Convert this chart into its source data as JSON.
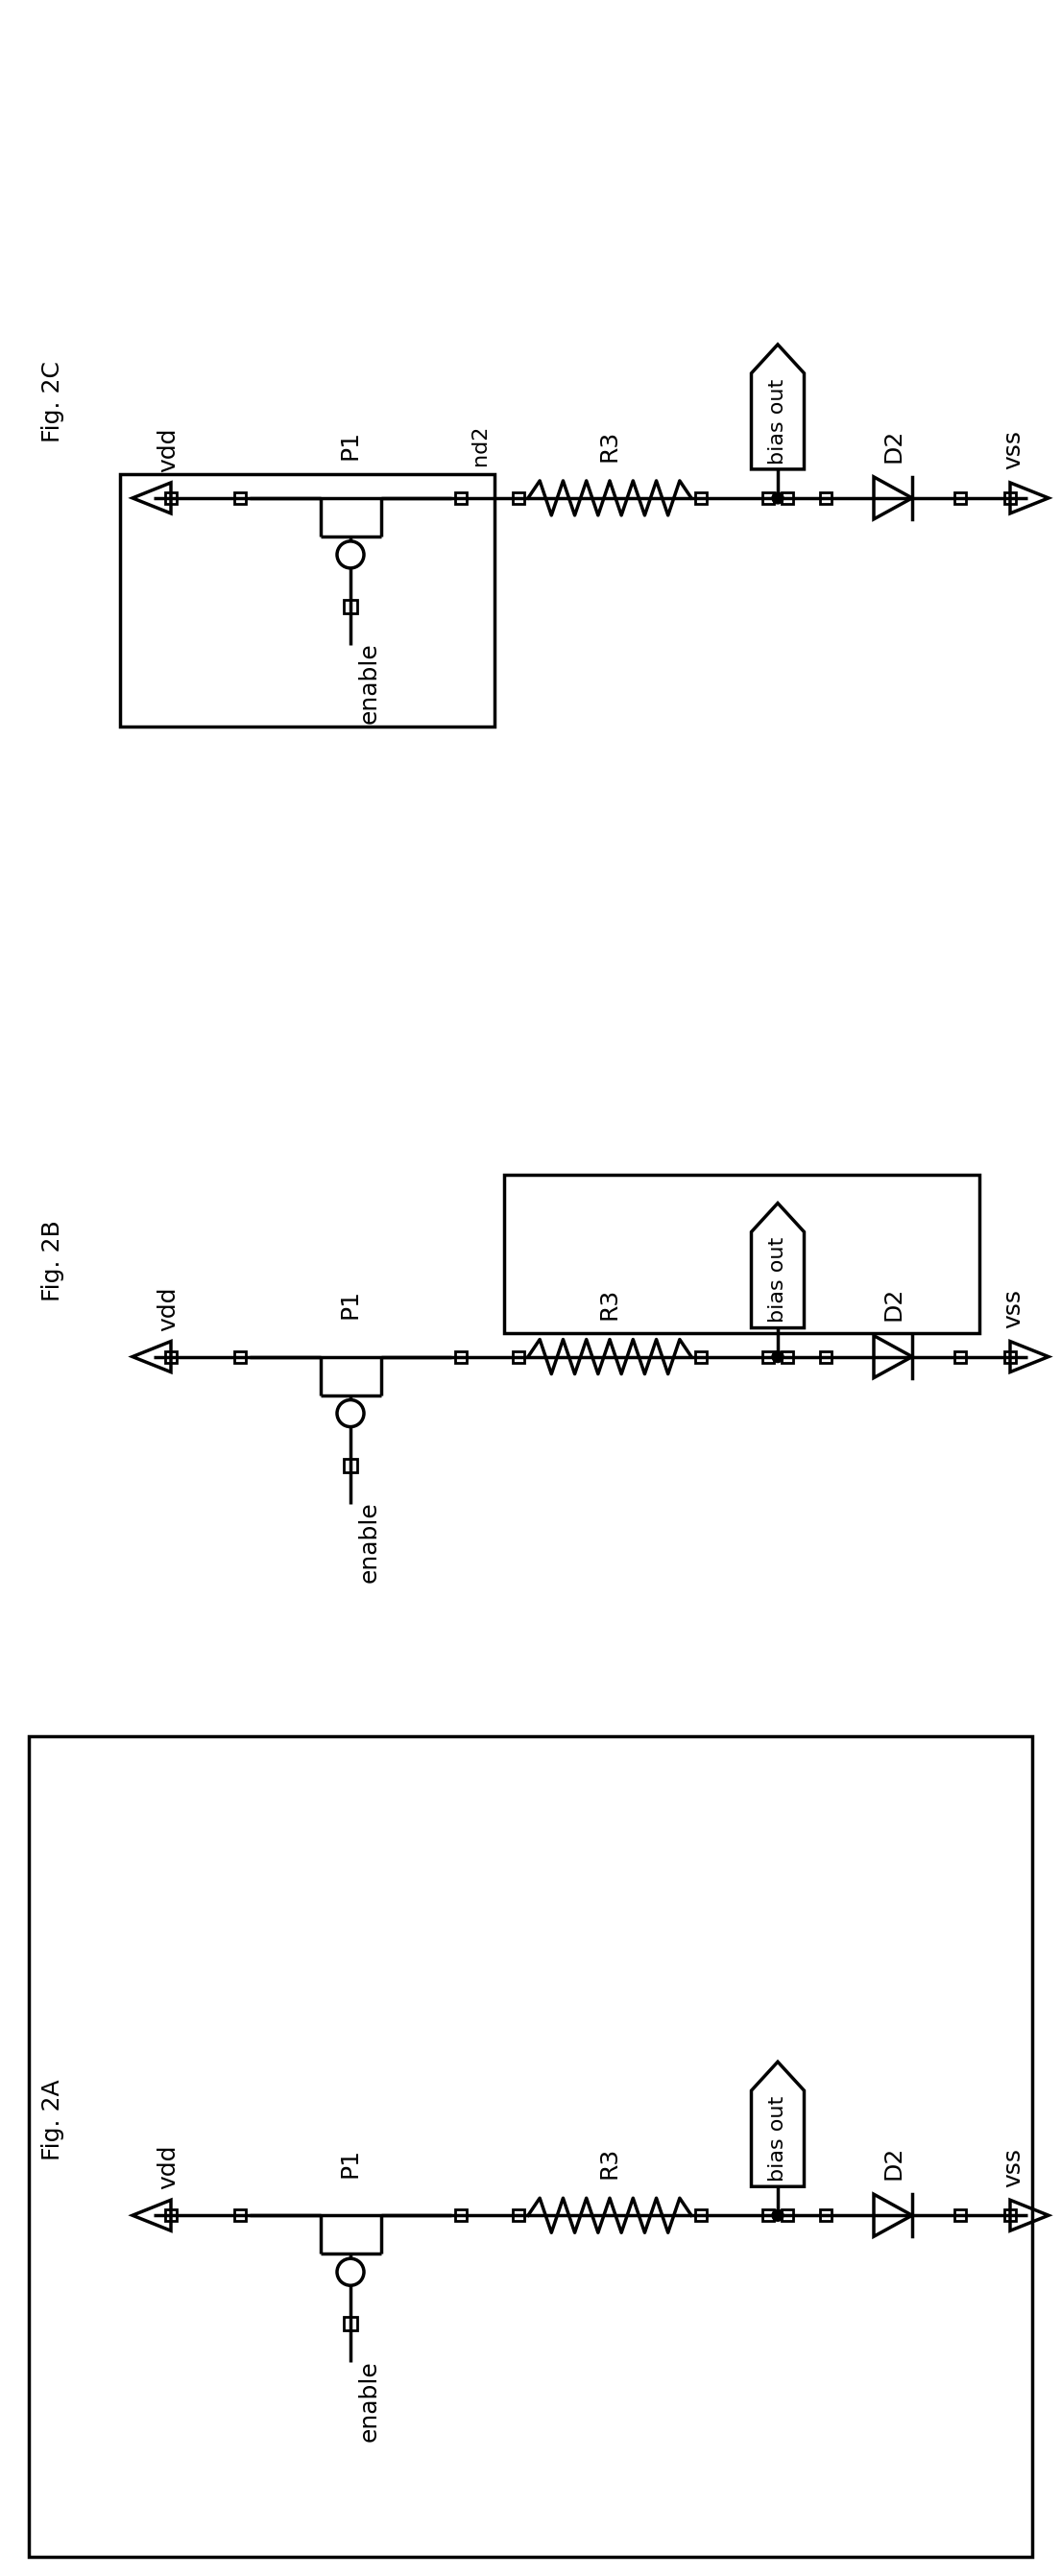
{
  "bg_color": "#ffffff",
  "line_color": "#000000",
  "line_width": 2.5,
  "font_size": 18,
  "fig_labels": [
    "Fig. 2C",
    "Fig. 2B",
    "Fig. 2A"
  ]
}
